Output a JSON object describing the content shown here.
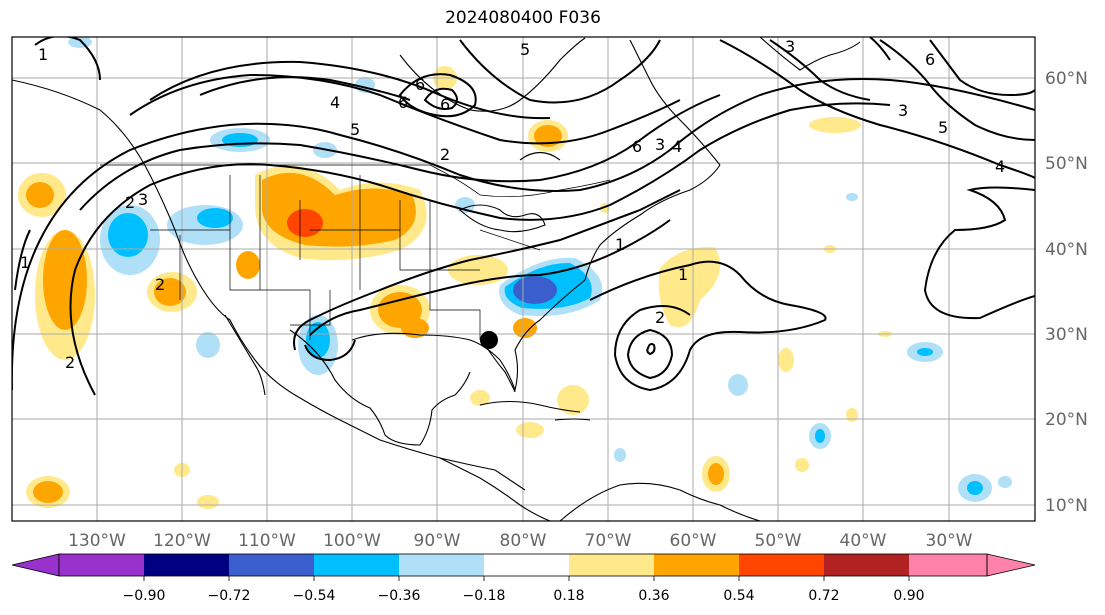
{
  "title": "2024080400 F036",
  "longitude_labels": [
    "130°W",
    "120°W",
    "110°W",
    "100°W",
    "90°W",
    "80°W",
    "70°W",
    "60°W",
    "50°W",
    "40°W",
    "30°W"
  ],
  "latitude_labels": [
    "60°N",
    "50°N",
    "40°N",
    "30°N",
    "20°N",
    "10°N"
  ],
  "colorbar": {
    "ticks": [
      "−0.90",
      "−0.72",
      "−0.54",
      "−0.36",
      "−0.18",
      "0.18",
      "0.36",
      "0.54",
      "0.72",
      "0.90"
    ],
    "colors": [
      "#9932cc",
      "#000080",
      "#3a5fcd",
      "#00bfff",
      "#b0e0f7",
      "#ffffff",
      "#ffe98a",
      "#ffa500",
      "#ff4500",
      "#b22222",
      "#ff82ab"
    ]
  },
  "contour_labels": [
    "1",
    "1",
    "2",
    "2",
    "3",
    "4",
    "5",
    "6",
    "6",
    "6",
    "6",
    "5",
    "4",
    "3",
    "2",
    "1",
    "2",
    "3",
    "3",
    "4",
    "5",
    "6",
    "1",
    "2"
  ],
  "marker": "black-dot"
}
